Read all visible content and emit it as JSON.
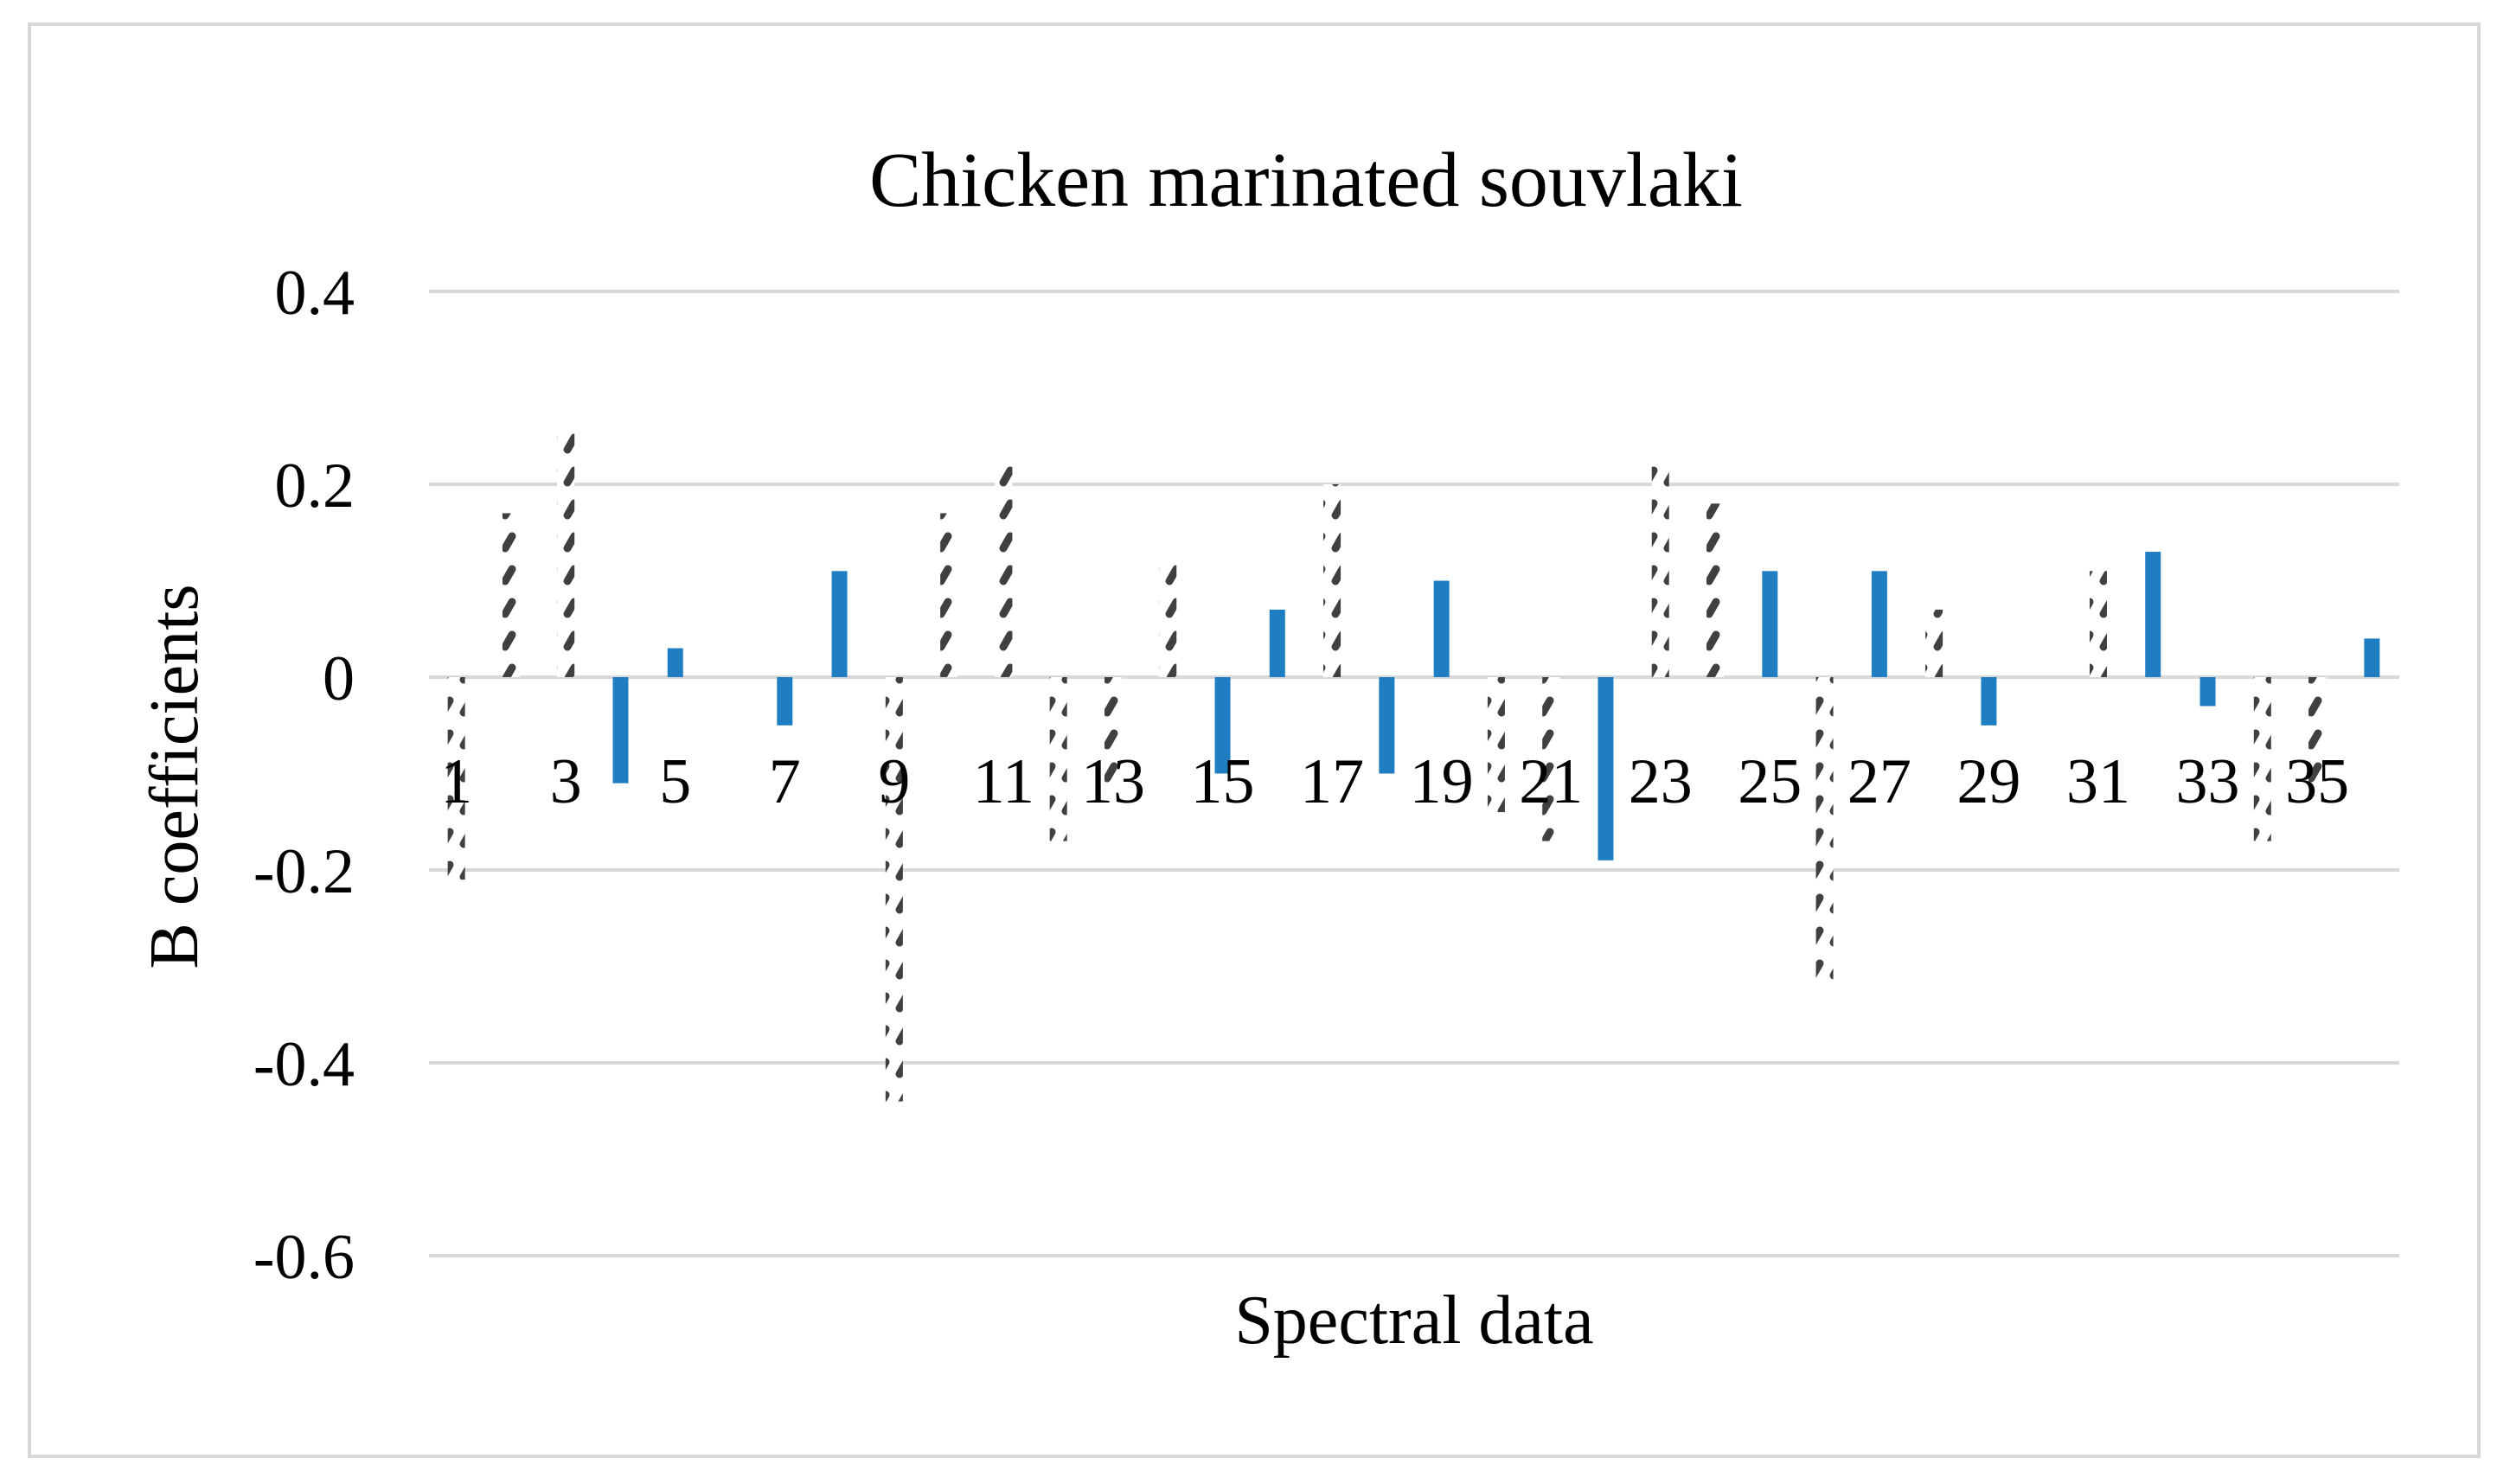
{
  "chart_data": {
    "type": "bar",
    "title": "Chicken marinated souvlaki",
    "xlabel": "Spectral data",
    "ylabel": "B coefficients",
    "ylim": [
      -0.6,
      0.4
    ],
    "yticks": [
      0.4,
      0.2,
      0,
      -0.2,
      -0.4,
      -0.6
    ],
    "ytick_labels": [
      "0.4",
      "0.2",
      "0",
      "-0.2",
      "-0.4",
      "-0.6"
    ],
    "categories": [
      1,
      2,
      3,
      4,
      5,
      6,
      7,
      8,
      9,
      10,
      11,
      12,
      13,
      14,
      15,
      16,
      17,
      18,
      19,
      20,
      21,
      22,
      23,
      24,
      25,
      26,
      27,
      28,
      29,
      30,
      31,
      32,
      33,
      34,
      35,
      36
    ],
    "xtick_labels": [
      "1",
      "3",
      "5",
      "7",
      "9",
      "11",
      "13",
      "15",
      "17",
      "19",
      "21",
      "23",
      "25",
      "27",
      "29",
      "31",
      "33",
      "35"
    ],
    "grid": true,
    "series": [
      {
        "style": "hatched",
        "color": "#404040",
        "values": [
          -0.21,
          0.17,
          0.26,
          0,
          0,
          0,
          0,
          0,
          -0.44,
          0.17,
          0.22,
          -0.17,
          -0.11,
          0.12,
          0,
          0,
          0.2,
          0,
          0,
          -0.14,
          -0.17,
          0,
          0.23,
          0.18,
          0,
          -0.32,
          0,
          0.07,
          0,
          0,
          0.11,
          0,
          0,
          -0.17,
          -0.11,
          0
        ]
      },
      {
        "style": "solid",
        "color": "#1f7ec2",
        "values": [
          0,
          0,
          0,
          -0.11,
          0.03,
          0,
          -0.05,
          0.11,
          0,
          0,
          0,
          0,
          0,
          0,
          -0.1,
          0.07,
          0,
          -0.1,
          0.1,
          0,
          0,
          -0.19,
          0,
          0,
          0.11,
          0,
          0.11,
          0,
          -0.05,
          0,
          0,
          0.13,
          -0.03,
          0,
          0,
          0.04
        ]
      }
    ]
  }
}
